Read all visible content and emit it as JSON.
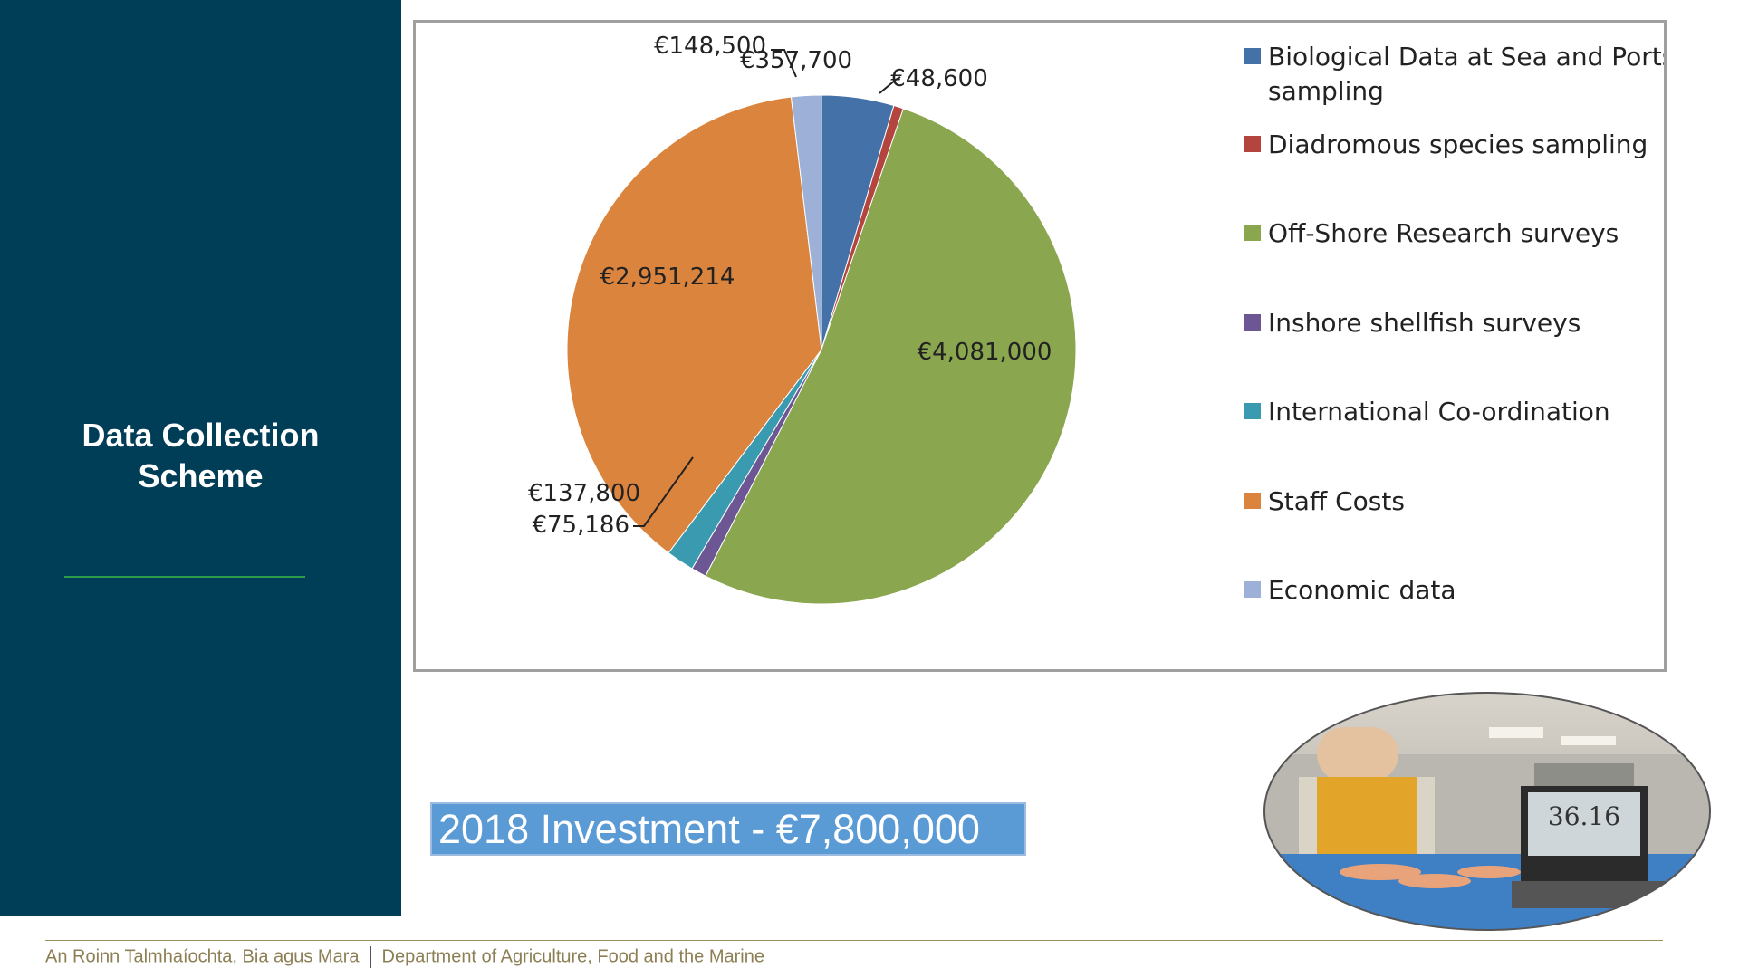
{
  "sidebar": {
    "title_line1": "Data Collection",
    "title_line2": "Scheme",
    "background": "#003e57",
    "rule_color": "#2e9b4a"
  },
  "chart_data": {
    "type": "pie",
    "title": "",
    "legend_position": "right",
    "slices": [
      {
        "name": "Biological Data at Sea and Ports sampling",
        "value": 357700,
        "label": "€357,700",
        "color": "#4472a8"
      },
      {
        "name": "Diadromous species sampling",
        "value": 48600,
        "label": "€48,600",
        "color": "#b4443e"
      },
      {
        "name": "Off-Shore Research surveys",
        "value": 4081000,
        "label": "€4,081,000",
        "color": "#8aa64e"
      },
      {
        "name": "Inshore shellfish surveys",
        "value": 75186,
        "label": "€75,186",
        "color": "#6d5694"
      },
      {
        "name": "International Co-ordination",
        "value": 137800,
        "label": "€137,800",
        "color": "#3a9bb0"
      },
      {
        "name": "Staff Costs",
        "value": 2951214,
        "label": "€2,951,214",
        "color": "#db843d"
      },
      {
        "name": "Economic data",
        "value": 148500,
        "label": "€148,500",
        "color": "#9db0d8"
      }
    ],
    "legend_lines": [
      [
        "Biological Data at Sea and Ports",
        "sampling"
      ],
      [
        "Diadromous species sampling"
      ],
      [
        "Off-Shore Research surveys"
      ],
      [
        "Inshore shellfish surveys"
      ],
      [
        "International Co-ordination"
      ],
      [
        "Staff Costs"
      ],
      [
        "Economic data"
      ]
    ]
  },
  "investment": {
    "label": "2018 Investment - €7,800,000",
    "background": "#5b9bd5"
  },
  "photo": {
    "readout": "36.16"
  },
  "footer": {
    "irish": "An Roinn Talmhaíochta, Bia agus Mara",
    "english": "Department of Agriculture, Food and the Marine",
    "color": "#8c7f54"
  }
}
